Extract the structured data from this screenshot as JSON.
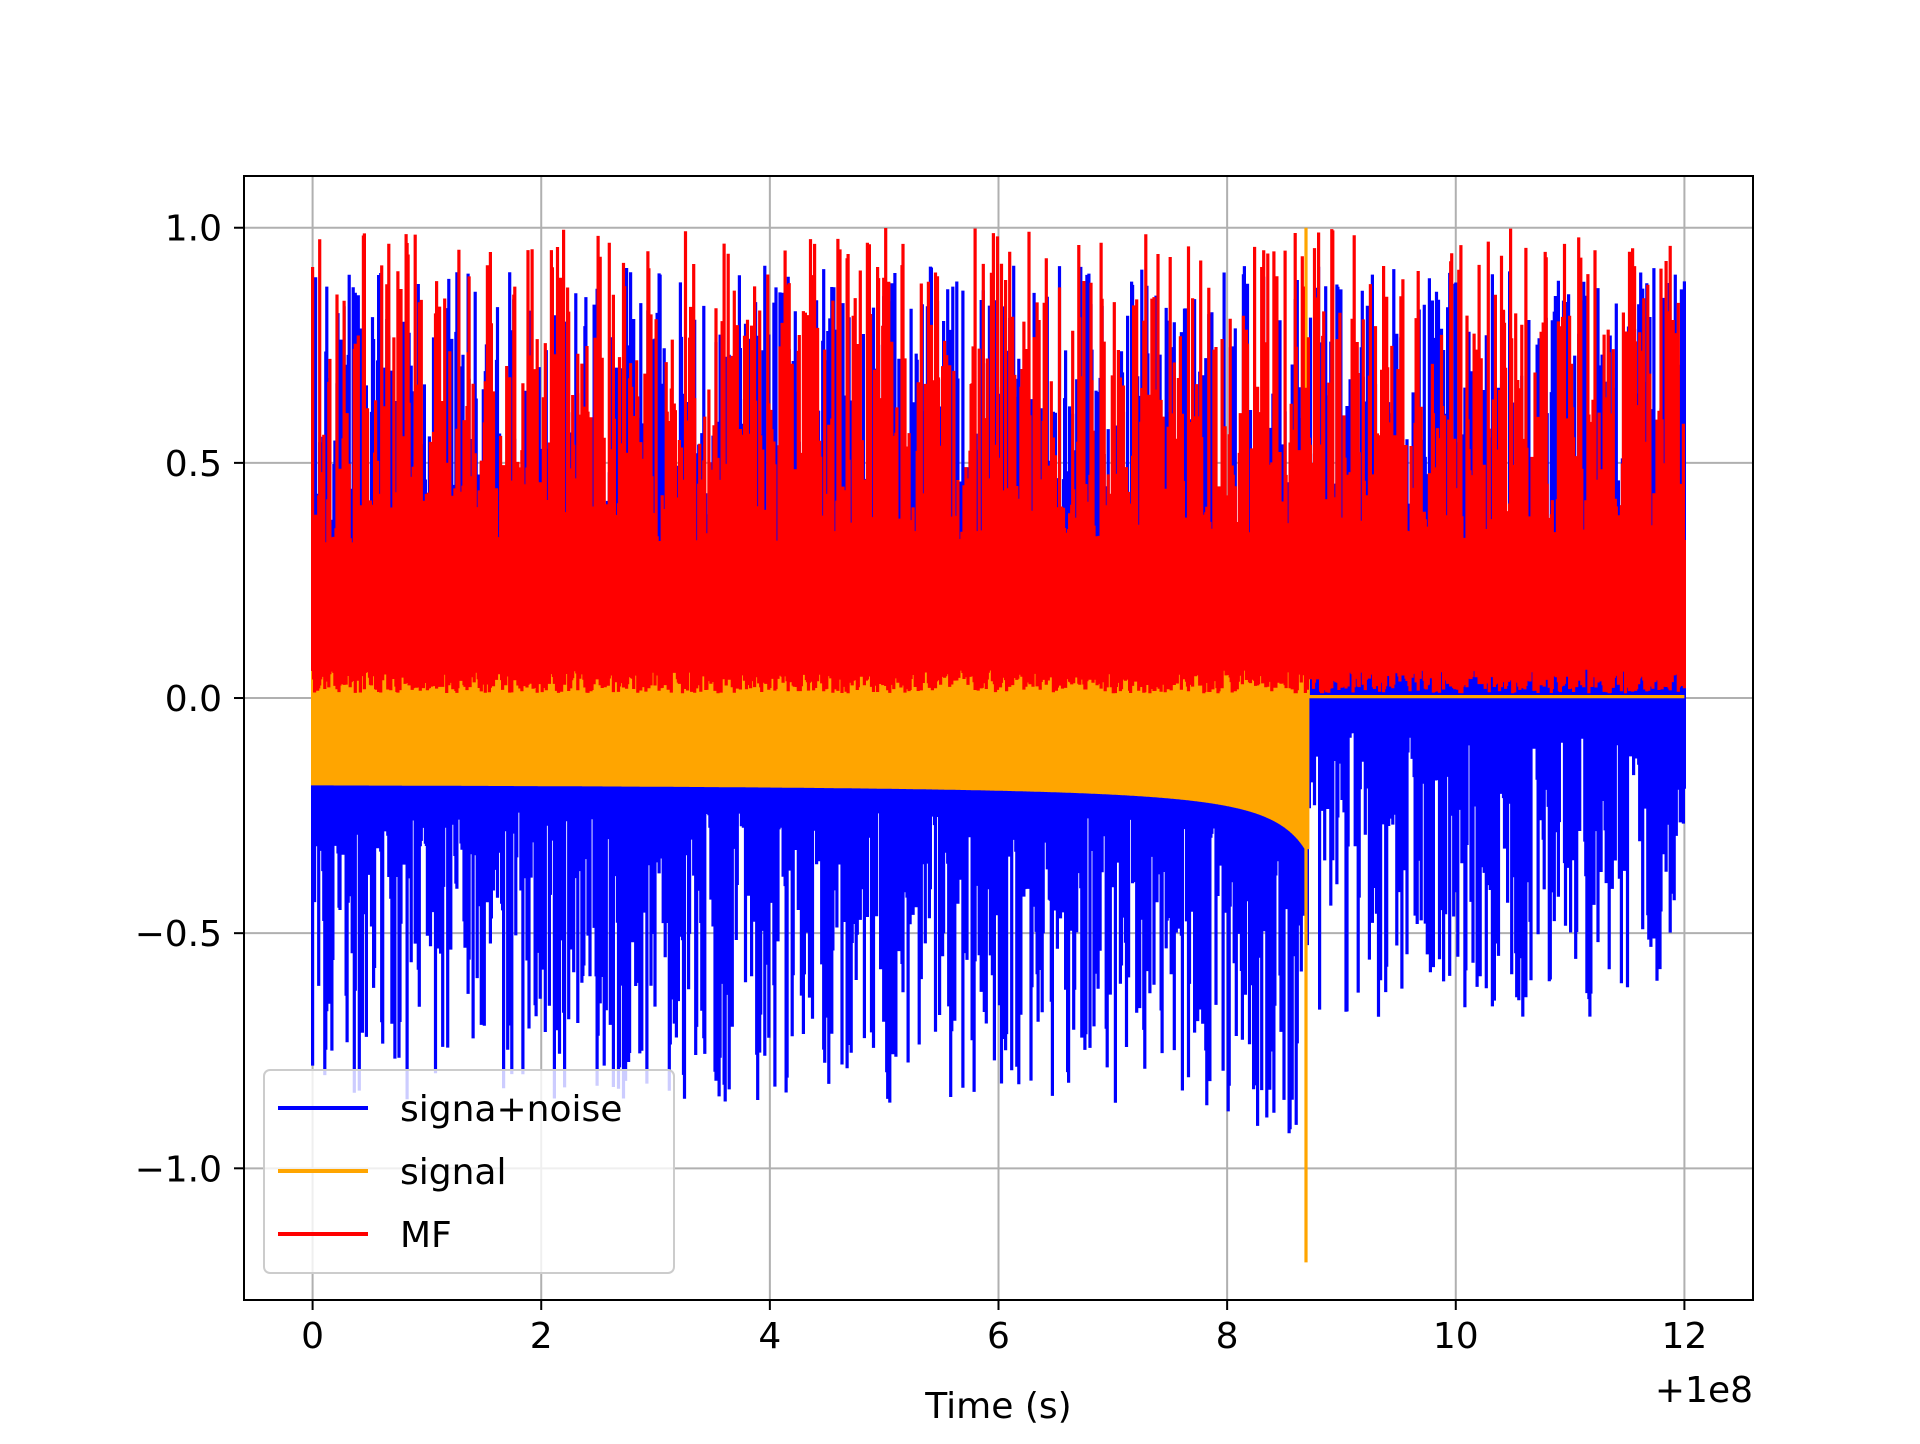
{
  "chart_data": {
    "type": "line",
    "title": "",
    "xlabel": "Time (s)",
    "ylabel": "",
    "x_offset_label": "+1e8",
    "xlim": [
      -0.6,
      12.6
    ],
    "ylim": [
      -1.28,
      1.11
    ],
    "x_ticks": [
      0,
      2,
      4,
      6,
      8,
      10,
      12
    ],
    "x_tick_labels": [
      "0",
      "2",
      "4",
      "6",
      "8",
      "10",
      "12"
    ],
    "y_ticks": [
      -1.0,
      -0.5,
      0.0,
      0.5,
      1.0
    ],
    "y_tick_labels": [
      "−1.0",
      "−0.5",
      "0.0",
      "0.5",
      "1.0"
    ],
    "grid": true,
    "legend_position": "lower-left",
    "x_range": [
      0,
      12
    ],
    "signal_end": 8.71,
    "series": [
      {
        "name": "signa+noise",
        "color": "#0000ff",
        "description_range": [
          -0.98,
          1.0
        ]
      },
      {
        "name": "signal",
        "color": "#ffa500",
        "chirp_min": -1.2,
        "chirp_max": 1.0,
        "baseline_lower": -0.21,
        "baseline_upper": 0.01
      },
      {
        "name": "MF",
        "color": "#ff0000",
        "range": [
          0.0,
          1.0
        ]
      }
    ]
  }
}
